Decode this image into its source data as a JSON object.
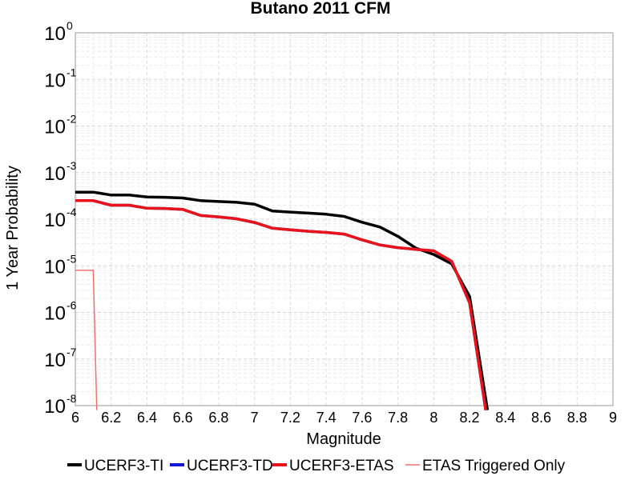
{
  "chart_data": {
    "type": "line",
    "title": "Butano 2011 CFM",
    "xlabel": "Magnitude",
    "ylabel": "1 Year Probability",
    "xlim": [
      6,
      9
    ],
    "ylim": [
      1e-08,
      1
    ],
    "yscale": "log",
    "grid": true,
    "legend_position": "bottom",
    "xticks": [
      "6",
      "6.2",
      "6.4",
      "6.6",
      "6.8",
      "7",
      "7.2",
      "7.4",
      "7.6",
      "7.8",
      "8",
      "8.2",
      "8.4",
      "8.6",
      "8.8",
      "9"
    ],
    "yticks": [
      {
        "base": "10",
        "exp": "0"
      },
      {
        "base": "10",
        "exp": "-1"
      },
      {
        "base": "10",
        "exp": "-2"
      },
      {
        "base": "10",
        "exp": "-3"
      },
      {
        "base": "10",
        "exp": "-4"
      },
      {
        "base": "10",
        "exp": "-5"
      },
      {
        "base": "10",
        "exp": "-6"
      },
      {
        "base": "10",
        "exp": "-7"
      },
      {
        "base": "10",
        "exp": "-8"
      }
    ],
    "series": [
      {
        "name": "UCERF3-TI",
        "color": "#000000",
        "x": [
          6.0,
          6.1,
          6.2,
          6.3,
          6.4,
          6.5,
          6.6,
          6.7,
          6.8,
          6.9,
          7.0,
          7.1,
          7.2,
          7.3,
          7.4,
          7.5,
          7.6,
          7.7,
          7.8,
          7.9,
          8.0,
          8.1,
          8.2,
          8.3
        ],
        "y": [
          0.00038,
          0.00038,
          0.00033,
          0.00033,
          0.0003,
          0.000295,
          0.000285,
          0.00025,
          0.00024,
          0.00023,
          0.00021,
          0.00015,
          0.000142,
          0.000135,
          0.000128,
          0.000115,
          8.6e-05,
          6.8e-05,
          4.3e-05,
          2.4e-05,
          1.75e-05,
          1.1e-05,
          2.2e-06,
          8e-09
        ]
      },
      {
        "name": "UCERF3-TD",
        "color": "#1414d8",
        "x": [
          6.0,
          6.1,
          6.2,
          6.3,
          6.4,
          6.5,
          6.6,
          6.7,
          6.8,
          6.9,
          7.0,
          7.1,
          7.2,
          7.3,
          7.4,
          7.5,
          7.6,
          7.7,
          7.8,
          7.9,
          8.0,
          8.1,
          8.2,
          8.29
        ],
        "y": [
          0.00025,
          0.00025,
          0.0002,
          0.0002,
          0.000172,
          0.00017,
          0.000162,
          0.00012,
          0.000112,
          0.000102,
          8.5e-05,
          6.4e-05,
          5.9e-05,
          5.5e-05,
          5.2e-05,
          4.8e-05,
          3.6e-05,
          2.8e-05,
          2.45e-05,
          2.25e-05,
          2.1e-05,
          1.25e-05,
          1.6e-06,
          8e-09
        ]
      },
      {
        "name": "UCERF3-ETAS",
        "color": "#e8141a",
        "x": [
          6.0,
          6.1,
          6.2,
          6.3,
          6.4,
          6.5,
          6.6,
          6.7,
          6.8,
          6.9,
          7.0,
          7.1,
          7.2,
          7.3,
          7.4,
          7.5,
          7.6,
          7.7,
          7.8,
          7.9,
          8.0,
          8.1,
          8.2,
          8.29
        ],
        "y": [
          0.00025,
          0.00025,
          0.0002,
          0.0002,
          0.000172,
          0.00017,
          0.000162,
          0.00012,
          0.000112,
          0.000102,
          8.5e-05,
          6.4e-05,
          5.9e-05,
          5.5e-05,
          5.2e-05,
          4.8e-05,
          3.6e-05,
          2.8e-05,
          2.45e-05,
          2.25e-05,
          2.1e-05,
          1.25e-05,
          1.6e-06,
          8e-09
        ]
      },
      {
        "name": "ETAS Triggered Only",
        "color": "#f07070",
        "x": [
          6.0,
          6.1,
          6.12
        ],
        "y": [
          8e-06,
          8e-06,
          8e-09
        ]
      }
    ]
  }
}
